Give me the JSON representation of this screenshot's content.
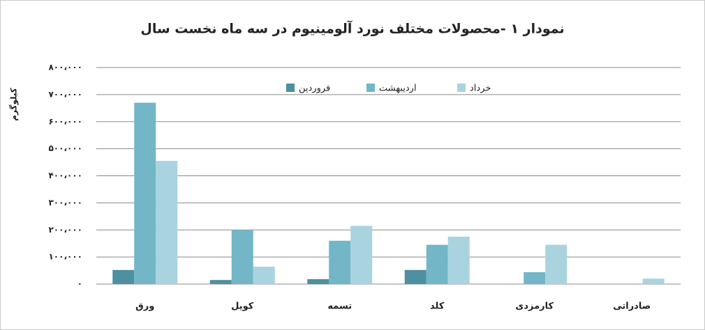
{
  "chart_data": {
    "type": "bar",
    "title": "نمودار ۱ -محصولات مختلف نورد آلومینیوم در سه ماه نخست سال",
    "y_label": "کیلوگرم",
    "categories": [
      "ورق",
      "کویل",
      "تسمه",
      "کلد",
      "کارمزدی",
      "صادراتی"
    ],
    "series": [
      {
        "name": "فروردین",
        "color": "#4e8fa0",
        "values": [
          52000,
          15000,
          18000,
          52000,
          0,
          0
        ]
      },
      {
        "name": "اردیبهشت",
        "color": "#72b6c8",
        "values": [
          670000,
          200000,
          160000,
          145000,
          44000,
          0
        ]
      },
      {
        "name": "خرداد",
        "color": "#a9d3df",
        "values": [
          455000,
          64000,
          215000,
          175000,
          145000,
          20000
        ]
      }
    ],
    "ylim": [
      0,
      800000
    ],
    "yticks": [
      {
        "value": 0,
        "label": "۰"
      },
      {
        "value": 100000,
        "label": "۱۰۰،۰۰۰"
      },
      {
        "value": 200000,
        "label": "۲۰۰،۰۰۰"
      },
      {
        "value": 300000,
        "label": "۳۰۰،۰۰۰"
      },
      {
        "value": 400000,
        "label": "۴۰۰،۰۰۰"
      },
      {
        "value": 500000,
        "label": "۵۰۰،۰۰۰"
      },
      {
        "value": 600000,
        "label": "۶۰۰،۰۰۰"
      },
      {
        "value": 700000,
        "label": "۷۰۰،۰۰۰"
      },
      {
        "value": 800000,
        "label": "۸۰۰،۰۰۰"
      }
    ],
    "grid": true,
    "legend": "top"
  }
}
